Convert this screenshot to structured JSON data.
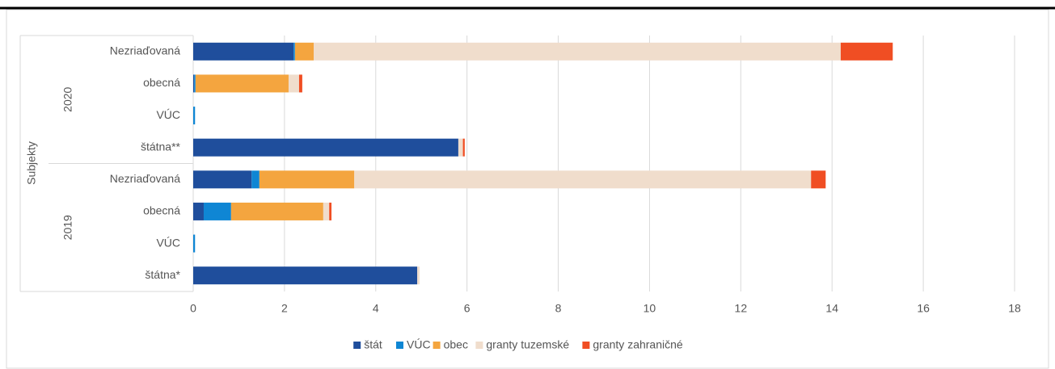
{
  "chart_data": {
    "type": "stacked-barh",
    "y_axis_label": "Subjekty",
    "groups": [
      {
        "name": "2020",
        "categories": [
          "Nezriaďovaná",
          "obecná",
          "VÚC",
          "štátna**"
        ]
      },
      {
        "name": "2019",
        "categories": [
          "Nezriaďovaná",
          "obecná",
          "VÚC",
          "štátna*"
        ]
      }
    ],
    "series": [
      {
        "name": "štát",
        "color": "#1f4e9c",
        "values": [
          2.2,
          0.02,
          0,
          5.81,
          1.28,
          0.23,
          0,
          4.91
        ]
      },
      {
        "name": "VÚC",
        "color": "#0f86d4",
        "values": [
          0.03,
          0.03,
          0.04,
          0,
          0.17,
          0.6,
          0.04,
          0
        ]
      },
      {
        "name": "obec",
        "color": "#f4a53f",
        "values": [
          0.41,
          2.04,
          0,
          0,
          2.08,
          2.02,
          0,
          0
        ]
      },
      {
        "name": "granty tuzemské",
        "color": "#f0ddcc",
        "values": [
          11.55,
          0.23,
          0,
          0.1,
          10.01,
          0.13,
          0,
          0.05
        ]
      },
      {
        "name": "granty zahraničné",
        "color": "#f04e23",
        "values": [
          1.14,
          0.07,
          0,
          0.04,
          0.32,
          0.05,
          0,
          0
        ]
      }
    ],
    "xlim": [
      0,
      18
    ],
    "xticks": [
      0,
      2,
      4,
      6,
      8,
      10,
      12,
      14,
      16,
      18
    ],
    "grid": true,
    "legend": "bottom"
  }
}
